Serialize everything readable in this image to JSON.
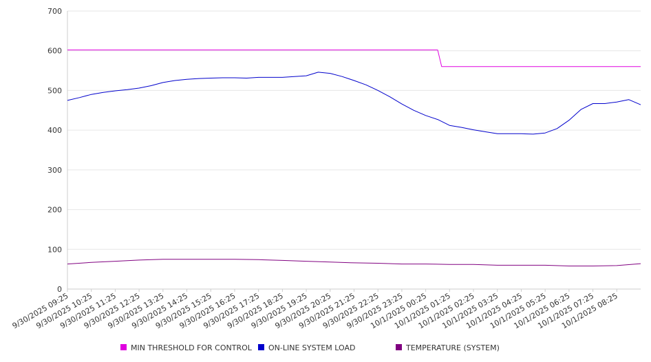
{
  "chart_data": {
    "type": "line",
    "title": "",
    "xlabel": "",
    "ylabel": "",
    "ylim": [
      0,
      700
    ],
    "yticks": [
      0,
      100,
      200,
      300,
      400,
      500,
      600,
      700
    ],
    "grid": true,
    "legend_position": "bottom",
    "x_tick_labels": [
      "9/30/2025 09:25",
      "9/30/2025 10:25",
      "9/30/2025 11:25",
      "9/30/2025 12:25",
      "9/30/2025 13:25",
      "9/30/2025 14:25",
      "9/30/2025 15:25",
      "9/30/2025 16:25",
      "9/30/2025 17:25",
      "9/30/2025 18:25",
      "9/30/2025 19:25",
      "9/30/2025 20:25",
      "9/30/2025 21:25",
      "9/30/2025 22:25",
      "9/30/2025 23:25",
      "10/1/2025 00:25",
      "10/1/2025 01:25",
      "10/1/2025 02:25",
      "10/1/2025 03:25",
      "10/1/2025 04:25",
      "10/1/2025 05:25",
      "10/1/2025 06:25",
      "10/1/2025 07:25",
      "10/1/2025 08:25"
    ],
    "x_range": [
      "9/30/2025 09:25",
      "10/1/2025 09:25"
    ],
    "series": [
      {
        "name": "MIN THRESHOLD FOR CONTROL",
        "color": "#e000e0",
        "points": [
          [
            "9/30/2025 09:25",
            602
          ],
          [
            "10/1/2025 00:55",
            602
          ],
          [
            "10/1/2025 01:05",
            560
          ],
          [
            "10/1/2025 09:25",
            560
          ]
        ]
      },
      {
        "name": "ON-LINE SYSTEM LOAD",
        "color": "#0000cc",
        "points": [
          [
            "9/30/2025 09:25",
            475
          ],
          [
            "9/30/2025 09:55",
            482
          ],
          [
            "9/30/2025 10:25",
            490
          ],
          [
            "9/30/2025 10:55",
            495
          ],
          [
            "9/30/2025 11:25",
            499
          ],
          [
            "9/30/2025 11:55",
            502
          ],
          [
            "9/30/2025 12:25",
            506
          ],
          [
            "9/30/2025 12:55",
            512
          ],
          [
            "9/30/2025 13:25",
            520
          ],
          [
            "9/30/2025 13:55",
            525
          ],
          [
            "9/30/2025 14:25",
            528
          ],
          [
            "9/30/2025 14:55",
            530
          ],
          [
            "9/30/2025 15:25",
            531
          ],
          [
            "9/30/2025 15:55",
            532
          ],
          [
            "9/30/2025 16:25",
            532
          ],
          [
            "9/30/2025 16:55",
            531
          ],
          [
            "9/30/2025 17:25",
            533
          ],
          [
            "9/30/2025 17:55",
            533
          ],
          [
            "9/30/2025 18:25",
            533
          ],
          [
            "9/30/2025 18:55",
            535
          ],
          [
            "9/30/2025 19:25",
            537
          ],
          [
            "9/30/2025 19:55",
            546
          ],
          [
            "9/30/2025 20:25",
            543
          ],
          [
            "9/30/2025 20:55",
            535
          ],
          [
            "9/30/2025 21:25",
            525
          ],
          [
            "9/30/2025 21:55",
            514
          ],
          [
            "9/30/2025 22:25",
            500
          ],
          [
            "9/30/2025 22:55",
            484
          ],
          [
            "9/30/2025 23:25",
            466
          ],
          [
            "9/30/2025 23:55",
            450
          ],
          [
            "10/1/2025 00:25",
            437
          ],
          [
            "10/1/2025 00:55",
            427
          ],
          [
            "10/1/2025 01:25",
            412
          ],
          [
            "10/1/2025 01:55",
            407
          ],
          [
            "10/1/2025 02:25",
            401
          ],
          [
            "10/1/2025 02:55",
            396
          ],
          [
            "10/1/2025 03:25",
            391
          ],
          [
            "10/1/2025 03:55",
            391
          ],
          [
            "10/1/2025 04:25",
            391
          ],
          [
            "10/1/2025 04:55",
            390
          ],
          [
            "10/1/2025 05:25",
            393
          ],
          [
            "10/1/2025 05:55",
            404
          ],
          [
            "10/1/2025 06:25",
            425
          ],
          [
            "10/1/2025 06:55",
            452
          ],
          [
            "10/1/2025 07:25",
            467
          ],
          [
            "10/1/2025 07:55",
            467
          ],
          [
            "10/1/2025 08:25",
            471
          ],
          [
            "10/1/2025 08:55",
            477
          ],
          [
            "10/1/2025 09:25",
            464
          ]
        ]
      },
      {
        "name": "TEMPERATURE (SYSTEM)",
        "color": "#800080",
        "points": [
          [
            "9/30/2025 09:25",
            63
          ],
          [
            "9/30/2025 10:25",
            67
          ],
          [
            "9/30/2025 11:25",
            70
          ],
          [
            "9/30/2025 12:25",
            73
          ],
          [
            "9/30/2025 13:25",
            75
          ],
          [
            "9/30/2025 14:25",
            75
          ],
          [
            "9/30/2025 15:25",
            75
          ],
          [
            "9/30/2025 16:25",
            75
          ],
          [
            "9/30/2025 17:25",
            74
          ],
          [
            "9/30/2025 18:25",
            72
          ],
          [
            "9/30/2025 19:25",
            70
          ],
          [
            "9/30/2025 20:25",
            68
          ],
          [
            "9/30/2025 21:25",
            66
          ],
          [
            "9/30/2025 22:25",
            65
          ],
          [
            "9/30/2025 23:25",
            63
          ],
          [
            "10/1/2025 00:25",
            63
          ],
          [
            "10/1/2025 01:25",
            62
          ],
          [
            "10/1/2025 02:25",
            62
          ],
          [
            "10/1/2025 03:25",
            60
          ],
          [
            "10/1/2025 04:25",
            60
          ],
          [
            "10/1/2025 05:25",
            60
          ],
          [
            "10/1/2025 06:25",
            58
          ],
          [
            "10/1/2025 07:25",
            58
          ],
          [
            "10/1/2025 08:25",
            59
          ],
          [
            "10/1/2025 09:25",
            64
          ]
        ]
      }
    ]
  }
}
